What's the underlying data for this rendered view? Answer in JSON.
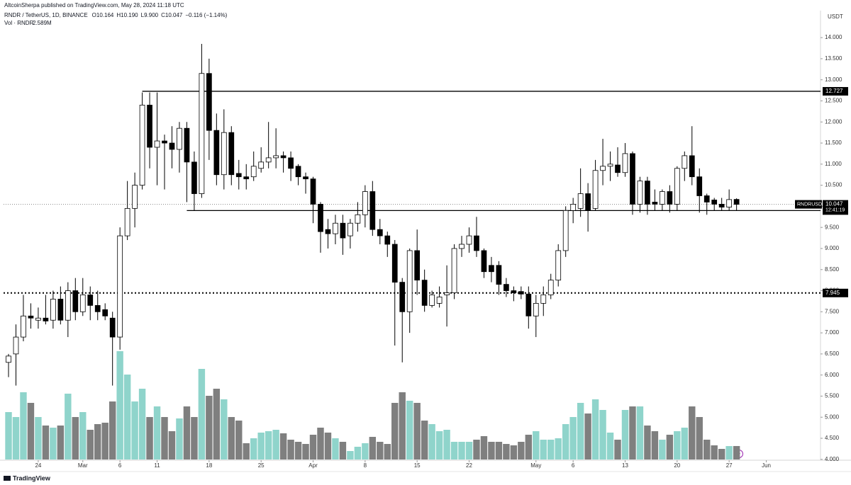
{
  "header": {
    "published": "AltcoinSherpa published on TradingView.com, May 28, 2024 11:18 UTC",
    "symbol": "RNDR / TetherUS, 1D, BINANCE",
    "ohlc": [
      "O10.164",
      "H10.190",
      "L9.900",
      "C10.047"
    ],
    "change": "−0.116 (−1.14%)",
    "volume_label": "Vol · RNDR",
    "volume_value": "2.589M"
  },
  "footer": "TradingView",
  "chart_data": {
    "type": "candlestick",
    "currency": "USDT",
    "open": [
      6.3,
      6.5,
      6.9,
      7.4,
      7.3,
      7.35,
      7.3,
      7.8,
      7.3,
      8.0,
      7.5,
      7.9,
      7.65,
      7.55,
      7.35,
      6.9,
      9.3,
      9.95,
      10.5,
      12.4,
      11.4,
      11.55,
      11.5,
      11.35,
      11.85,
      11.05,
      10.3,
      13.15,
      11.8,
      10.75,
      11.75,
      10.78,
      10.7,
      10.7,
      10.9,
      11.05,
      11.15,
      11.2,
      11.15,
      10.95,
      10.7,
      10.65,
      10.05,
      9.45,
      9.35,
      9.6,
      9.3,
      9.6,
      9.8,
      10.35,
      9.45,
      9.3,
      9.1,
      8.2,
      7.5,
      8.95,
      8.25,
      7.65,
      7.7,
      7.9,
      7.95,
      9.0,
      9.1,
      9.3,
      8.95,
      8.6,
      8.6,
      8.15,
      8.0,
      7.98,
      7.92,
      7.4,
      7.7,
      7.9,
      8.25,
      8.95,
      9.9,
      9.95,
      10.3,
      9.95,
      10.85,
      10.95,
      10.98,
      10.8,
      11.25,
      10.05,
      10.6,
      10.1,
      10.05,
      10.35,
      10.05,
      10.9,
      11.2,
      10.7,
      10.25,
      10.15,
      10.05,
      9.98,
      10.164
    ],
    "high": [
      6.5,
      7.2,
      7.9,
      7.7,
      7.6,
      7.9,
      8.0,
      8.1,
      8.2,
      8.3,
      8.3,
      8.1,
      8.0,
      7.7,
      7.5,
      9.5,
      10.6,
      10.8,
      12.7,
      12.7,
      12.7,
      11.7,
      11.9,
      12.0,
      12.0,
      11.3,
      13.85,
      13.5,
      12.2,
      12.3,
      11.9,
      11.1,
      11.0,
      11.3,
      11.4,
      12.0,
      11.85,
      11.3,
      11.3,
      11.0,
      10.8,
      10.7,
      10.1,
      9.7,
      9.8,
      9.8,
      9.7,
      10.1,
      10.5,
      10.6,
      9.7,
      9.4,
      9.2,
      8.3,
      9.0,
      9.45,
      8.5,
      8.0,
      8.1,
      8.6,
      9.1,
      9.3,
      9.5,
      9.75,
      9.0,
      8.8,
      8.7,
      8.3,
      8.1,
      8.1,
      8.1,
      7.9,
      8.1,
      8.4,
      9.1,
      10.0,
      10.2,
      10.9,
      10.55,
      11.1,
      11.6,
      11.3,
      11.4,
      11.5,
      11.3,
      10.7,
      10.7,
      10.4,
      10.4,
      10.5,
      10.95,
      11.3,
      11.9,
      10.9,
      10.3,
      10.2,
      10.2,
      10.4,
      10.19
    ],
    "low": [
      5.95,
      5.75,
      6.8,
      7.1,
      7.1,
      7.2,
      7.1,
      7.2,
      6.9,
      7.3,
      7.4,
      7.3,
      7.3,
      7.3,
      5.75,
      6.6,
      9.2,
      9.5,
      10.4,
      10.9,
      10.5,
      10.4,
      10.9,
      10.8,
      10.1,
      9.9,
      10.2,
      11.1,
      10.5,
      10.4,
      10.5,
      10.4,
      10.4,
      10.6,
      10.8,
      10.9,
      10.9,
      10.8,
      10.6,
      10.5,
      10.3,
      9.6,
      8.9,
      9.0,
      9.1,
      8.85,
      9.0,
      9.4,
      9.5,
      9.3,
      9.1,
      8.8,
      6.7,
      6.3,
      7.0,
      7.9,
      7.5,
      7.6,
      7.6,
      7.15,
      7.8,
      8.8,
      8.9,
      8.8,
      8.3,
      8.2,
      7.9,
      7.85,
      7.75,
      7.8,
      7.1,
      6.9,
      7.4,
      7.8,
      8.1,
      8.8,
      9.6,
      9.75,
      9.4,
      9.9,
      10.5,
      10.6,
      10.7,
      10.7,
      9.8,
      9.85,
      9.8,
      9.9,
      9.9,
      9.85,
      9.9,
      10.6,
      10.5,
      9.85,
      9.8,
      9.9,
      9.9,
      9.9,
      9.9
    ],
    "close": [
      6.45,
      6.9,
      7.4,
      7.35,
      7.35,
      7.28,
      7.8,
      7.3,
      8.0,
      7.5,
      7.9,
      7.65,
      7.5,
      7.4,
      6.9,
      9.3,
      9.95,
      10.5,
      12.4,
      11.4,
      11.55,
      11.5,
      11.35,
      11.85,
      11.05,
      10.3,
      13.15,
      11.8,
      10.75,
      11.75,
      10.75,
      10.7,
      10.65,
      10.95,
      11.05,
      11.15,
      11.2,
      11.15,
      10.9,
      10.7,
      10.65,
      10.05,
      9.4,
      9.35,
      9.6,
      9.25,
      9.6,
      9.8,
      10.35,
      9.45,
      9.3,
      9.1,
      8.2,
      7.5,
      8.95,
      8.25,
      7.65,
      7.9,
      7.85,
      7.95,
      9.0,
      9.1,
      9.3,
      8.95,
      8.45,
      8.45,
      8.15,
      8.0,
      7.95,
      7.92,
      7.4,
      7.7,
      7.9,
      8.25,
      8.95,
      9.9,
      10.05,
      10.3,
      9.9,
      10.85,
      10.95,
      11.0,
      10.8,
      11.25,
      10.05,
      10.6,
      10.05,
      10.05,
      10.35,
      10.05,
      10.9,
      11.2,
      10.7,
      10.25,
      10.1,
      10.05,
      9.98,
      10.16,
      10.047
    ],
    "volume": [
      9.11,
      8.16,
      12.92,
      10.88,
      8.16,
      6.53,
      6.12,
      6.53,
      12.65,
      8.16,
      9.11,
      5.71,
      6.8,
      7.07,
      11.15,
      20.81,
      16.32,
      11.15,
      13.6,
      8.16,
      10.2,
      8.16,
      5.44,
      7.89,
      10.2,
      8.16,
      17.41,
      12.24,
      13.6,
      11.56,
      8.16,
      7.48,
      3.13,
      4.08,
      5.17,
      5.44,
      5.71,
      5.03,
      3.81,
      3.4,
      2.99,
      4.76,
      6.12,
      5.17,
      4.08,
      3.4,
      1.63,
      2.45,
      3.13,
      4.35,
      3.4,
      2.99,
      10.88,
      12.92,
      11.29,
      10.88,
      7.48,
      6.8,
      5.44,
      5.71,
      3.4,
      3.4,
      3.4,
      3.81,
      4.49,
      3.4,
      3.4,
      2.99,
      2.72,
      3.4,
      4.76,
      5.44,
      3.81,
      3.81,
      4.08,
      6.8,
      8.16,
      10.88,
      8.84,
      11.56,
      9.52,
      5.17,
      3.81,
      9.52,
      10.2,
      10.2,
      6.53,
      5.44,
      3.81,
      4.76,
      5.44,
      6.12,
      10.2,
      8.16,
      3.81,
      2.72,
      2.04,
      2.58,
      2.589
    ],
    "up_color": "#ffffff",
    "down_color": "#000000",
    "border_color": "#000000",
    "volume_up_color": "#8fd4cb",
    "volume_down_color": "#7f7f7f",
    "xlim": [
      -0.67,
      109.3
    ],
    "xticks": [
      {
        "value": 4,
        "label": "24"
      },
      {
        "value": 10,
        "label": "Mar"
      },
      {
        "value": 15,
        "label": "6"
      },
      {
        "value": 20,
        "label": "11"
      },
      {
        "value": 27,
        "label": "18"
      },
      {
        "value": 34,
        "label": "25"
      },
      {
        "value": 41,
        "label": "Apr"
      },
      {
        "value": 48,
        "label": "8"
      },
      {
        "value": 55,
        "label": "15"
      },
      {
        "value": 62,
        "label": "22"
      },
      {
        "value": 71,
        "label": "May"
      },
      {
        "value": 76,
        "label": "6"
      },
      {
        "value": 83,
        "label": "13"
      },
      {
        "value": 90,
        "label": "20"
      },
      {
        "value": 97,
        "label": "27"
      },
      {
        "value": 102,
        "label": "Jun"
      }
    ],
    "ylim": [
      3.98,
      14.64
    ],
    "yticks": [
      {
        "value": 4,
        "label": "4.000"
      },
      {
        "value": 4.5,
        "label": "4.500"
      },
      {
        "value": 5,
        "label": "5.000"
      },
      {
        "value": 5.5,
        "label": "5.500"
      },
      {
        "value": 6,
        "label": "6.000"
      },
      {
        "value": 6.5,
        "label": "6.500"
      },
      {
        "value": 7,
        "label": "7.000"
      },
      {
        "value": 7.5,
        "label": "7.500"
      },
      {
        "value": 8,
        "label": "8.000"
      },
      {
        "value": 8.5,
        "label": "8.500"
      },
      {
        "value": 9,
        "label": "9.000"
      },
      {
        "value": 9.5,
        "label": "9.500"
      },
      {
        "value": 10,
        "label": "10.000"
      },
      {
        "value": 10.5,
        "label": "10.500"
      },
      {
        "value": 11,
        "label": "11.000"
      },
      {
        "value": 11.5,
        "label": "11.500"
      },
      {
        "value": 12,
        "label": "12.000"
      },
      {
        "value": 12.5,
        "label": "12.500"
      },
      {
        "value": 13,
        "label": "13.000"
      },
      {
        "value": 13.5,
        "label": "13.500"
      },
      {
        "value": 14,
        "label": "14.000"
      }
    ],
    "grid": false,
    "levels": [
      {
        "value": 12.727,
        "label": "12.727",
        "style": "solid",
        "start": 18
      },
      {
        "value": 9.9,
        "label": "9.900",
        "style": "solid",
        "start": 24
      },
      {
        "value": 7.945,
        "label": "7.945",
        "style": "dotted"
      }
    ],
    "current_price": {
      "symbol": "RNDRUSDT",
      "value": 10.047,
      "label": "10.047",
      "countdown": "12:41:19"
    }
  }
}
